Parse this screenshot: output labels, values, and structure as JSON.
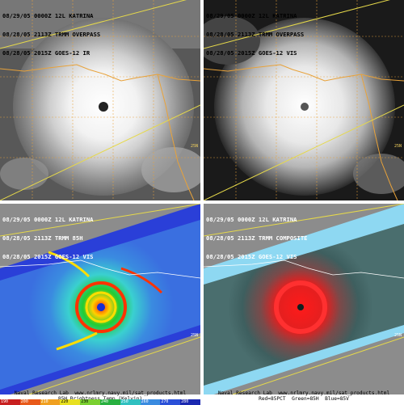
{
  "panels": {
    "tl": {
      "lines": [
        "08/29/05 0000Z 12L KATRINA",
        "08/28/05 2113Z TRMM OVERPASS",
        "08/28/05 2015Z GOES-12 IR"
      ]
    },
    "tr": {
      "lines": [
        "08/29/05 0000Z 12L KATRINA",
        "08/28/05 2113Z TRMM OVERPASS",
        "08/28/05 2015Z GOES-12 VIS"
      ]
    },
    "bl": {
      "lines": [
        "08/29/05 0000Z 12L KATRINA",
        "08/28/05 2113Z TRMM 85H",
        "08/28/05 2015Z GOES-12 VIS"
      ],
      "footer1": "Naval Research Lab  www.nrlmry.navy.mil/sat_products.html",
      "footer2": "85H Brightness Temp (Kelvin)"
    },
    "br": {
      "lines": [
        "08/29/05 0000Z 12L KATRINA",
        "08/28/05 2113Z TRMM COMPOSITE",
        "08/28/05 2015Z GOES-12 VIS"
      ],
      "footer1": "Naval Research Lab  www.nrlmry.navy.mil/sat_products.html",
      "footer2": "Red=85PCT  Green=85H  Blue=85V"
    }
  },
  "lat_labels": {
    "a": "25N",
    "b": "25N"
  },
  "scale_ticks": [
    "190",
    "200",
    "210",
    "220",
    "230",
    "240",
    "250",
    "260",
    "270",
    "280"
  ],
  "colors": {
    "coast": "#e8a23a",
    "swath": "#e6d94a",
    "ir_bg": "#5a5a5a"
  }
}
